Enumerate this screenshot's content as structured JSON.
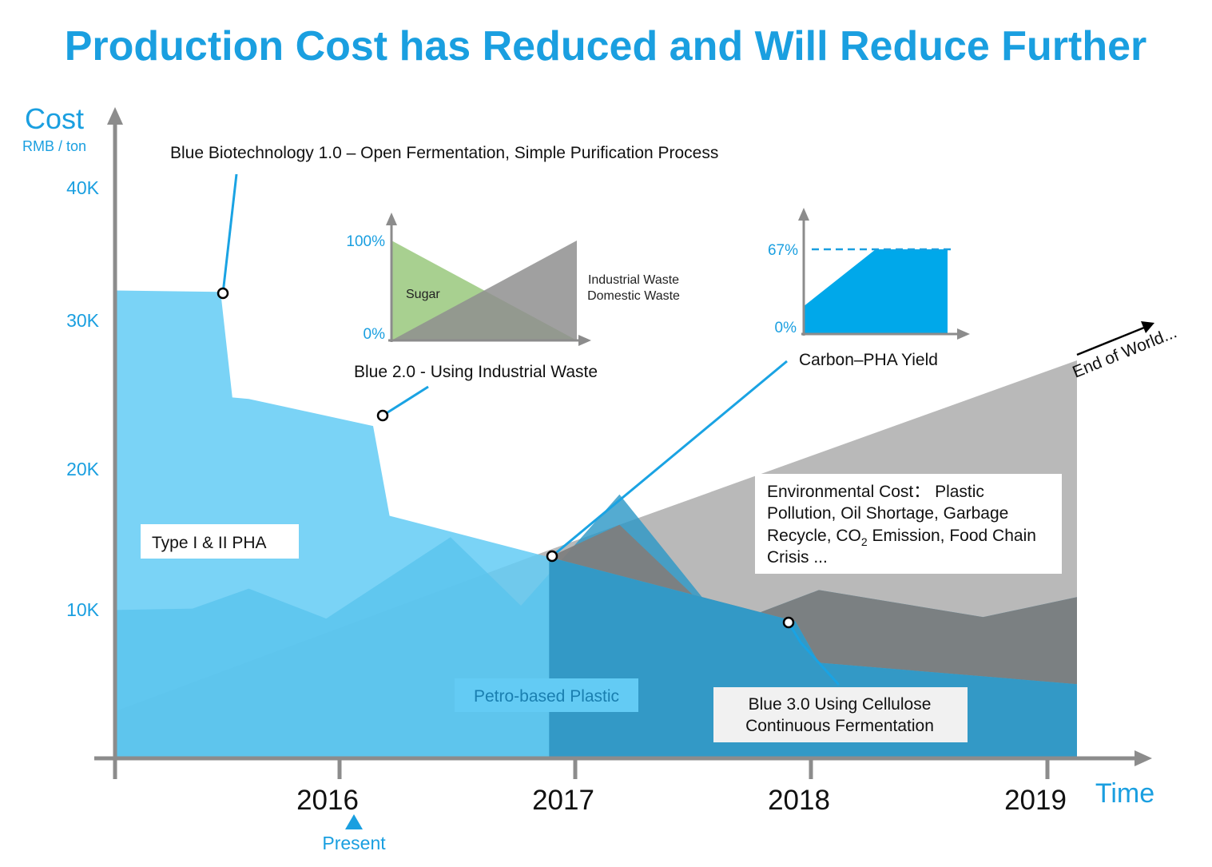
{
  "chart_data": {
    "type": "area",
    "title": "Production Cost has Reduced and Will Reduce Further",
    "ylabel": "Cost",
    "yunit": "RMB / ton",
    "xlabel": "Time",
    "ylim": [
      0,
      40000
    ],
    "y_ticks": [
      {
        "value": 10000,
        "label": "10K"
      },
      {
        "value": 20000,
        "label": "20K"
      },
      {
        "value": 30000,
        "label": "30K"
      },
      {
        "value": 40000,
        "label": "40K"
      }
    ],
    "xlim": [
      2015.05,
      2019.45
    ],
    "x_ticks": [
      {
        "value": 2015.05,
        "label": ""
      },
      {
        "value": 2016.0,
        "label": "2016"
      },
      {
        "value": 2017.0,
        "label": "2017"
      },
      {
        "value": 2018.0,
        "label": "2018"
      },
      {
        "value": 2019.0,
        "label": "2019"
      }
    ],
    "present_marker": {
      "x": 2016.05,
      "label": "Present"
    },
    "series": [
      {
        "name": "Type I & II PHA",
        "color": "#63cbf4",
        "points": [
          [
            2015.05,
            32800
          ],
          [
            2015.5,
            32700
          ],
          [
            2015.55,
            25300
          ],
          [
            2015.62,
            25200
          ],
          [
            2016.15,
            23300
          ],
          [
            2016.22,
            17000
          ],
          [
            2016.9,
            14100
          ],
          [
            2017.95,
            9600
          ],
          [
            2018.05,
            6700
          ],
          [
            2019.15,
            5200
          ]
        ]
      },
      {
        "name": "Petro-based Plastic",
        "color": "#2e99c7",
        "points": [
          [
            2015.05,
            10400
          ],
          [
            2015.38,
            10500
          ],
          [
            2015.62,
            11900
          ],
          [
            2015.95,
            9800
          ],
          [
            2016.48,
            15500
          ],
          [
            2016.78,
            10700
          ],
          [
            2017.2,
            18500
          ],
          [
            2017.65,
            9300
          ],
          [
            2018.05,
            11800
          ],
          [
            2018.75,
            9900
          ],
          [
            2019.15,
            11300
          ]
        ]
      },
      {
        "name": "Environmental Cost",
        "color": "#b9b9b9",
        "points": [
          [
            2015.05,
            3300
          ],
          [
            2016.9,
            14600
          ],
          [
            2019.15,
            27900
          ]
        ]
      }
    ],
    "annotations": [
      "Blue Biotechnology 1.0 – Open Fermentation, Simple Purification Process",
      "Blue 2.0 - Using Industrial Waste",
      "Carbon–PHA Yield",
      "Blue 3.0 Using Cellulose",
      "Continuous Fermentation",
      "End of World..."
    ],
    "milestones": [
      {
        "x": 2015.5,
        "y": 32000
      },
      {
        "x": 2016.18,
        "y": 23500
      },
      {
        "x": 2016.88,
        "y": 14100
      },
      {
        "x": 2017.9,
        "y": 9700
      }
    ],
    "environmental_box": {
      "lines": [
        "Environmental Cost： Plastic",
        "Pollution, Oil Shortage, Garbage",
        "Recycle, CO",
        "2",
        " Emission, Food Chain",
        "Crisis ..."
      ]
    },
    "inset_feedstock": {
      "type": "area",
      "ylabels": [
        "100%",
        "0%"
      ],
      "series": [
        {
          "name": "Sugar",
          "start": 100,
          "end": 0,
          "color": "#9ecb84"
        },
        {
          "name": "Industrial Waste",
          "start": 0,
          "end": 100,
          "color": "#8f8f8f"
        }
      ],
      "label2": "Domestic Waste"
    },
    "inset_yield": {
      "type": "area",
      "ylabels": [
        "67%",
        "0%"
      ],
      "target": 67,
      "points": [
        [
          0,
          22
        ],
        [
          0.5,
          67
        ],
        [
          1,
          67
        ]
      ],
      "color": "#00a8ea"
    }
  }
}
